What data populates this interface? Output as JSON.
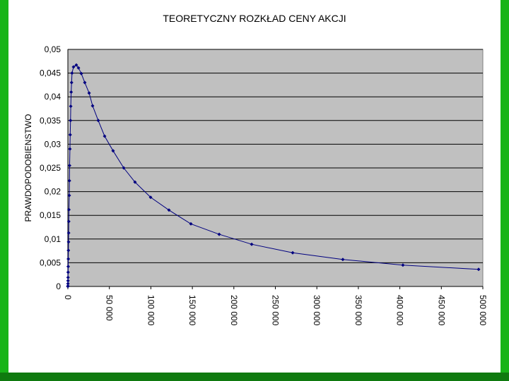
{
  "chart_data": {
    "type": "scatter",
    "title": "TEORETYCZNY ROZKŁAD CENY AKCJI",
    "y_label": "PRAWDOPODOBIENSTWO",
    "color": "#000080",
    "x": [
      0,
      50,
      100,
      150,
      200,
      300,
      400,
      500,
      650,
      800,
      950,
      1100,
      1300,
      1700,
      1900,
      2100,
      2500,
      2800,
      3200,
      3500,
      4000,
      4500,
      5000,
      6800,
      10200,
      12800,
      16200,
      20400,
      25600,
      29800,
      36600,
      44300,
      54500,
      67300,
      80900,
      99700,
      121800,
      148200,
      182300,
      221500,
      270900,
      331300,
      403700,
      494900
    ],
    "values": [
      0,
      0.0001,
      0.0006,
      0.0012,
      0.0019,
      0.003,
      0.0042,
      0.0058,
      0.0076,
      0.0094,
      0.0113,
      0.0137,
      0.0162,
      0.0192,
      0.0223,
      0.0255,
      0.029,
      0.032,
      0.035,
      0.038,
      0.041,
      0.043,
      0.045,
      0.0463,
      0.0467,
      0.0461,
      0.0449,
      0.043,
      0.0408,
      0.0381,
      0.035,
      0.0317,
      0.0286,
      0.025,
      0.022,
      0.0188,
      0.0161,
      0.0132,
      0.011,
      0.0089,
      0.0071,
      0.0057,
      0.0045,
      0.0036
    ],
    "xlim": [
      0,
      500000
    ],
    "xticks": [
      0,
      {
        "value": 50000,
        "label": "50 000"
      },
      {
        "value": 100000,
        "label": "100 000"
      },
      {
        "value": 150000,
        "label": "150 000"
      },
      {
        "value": 200000,
        "label": "200 000"
      },
      {
        "value": 250000,
        "label": "250 000"
      },
      {
        "value": 300000,
        "label": "300 000"
      },
      {
        "value": 350000,
        "label": "350 000"
      },
      {
        "value": 400000,
        "label": "400 000"
      },
      {
        "value": 450000,
        "label": "450 000"
      },
      {
        "value": 500000,
        "label": "500 000"
      }
    ],
    "ylim": [
      0,
      0.05
    ],
    "yticks": [
      0,
      {
        "value": 0.005,
        "label": "0,005"
      },
      {
        "value": 0.01,
        "label": "0,01"
      },
      {
        "value": 0.015,
        "label": "0,015"
      },
      {
        "value": 0.02,
        "label": "0,02"
      },
      {
        "value": 0.025,
        "label": "0,025"
      },
      {
        "value": 0.03,
        "label": "0,03"
      },
      {
        "value": 0.035,
        "label": "0,035"
      },
      {
        "value": 0.04,
        "label": "0,04"
      },
      {
        "value": 0.045,
        "label": "0,045"
      },
      {
        "value": 0.05,
        "label": "0,05"
      }
    ],
    "grid": true
  }
}
